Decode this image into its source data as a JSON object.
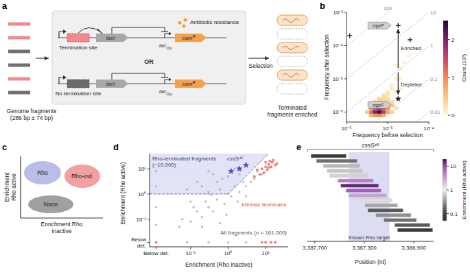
{
  "panel_a": {
    "letter": "a",
    "fragment_colors": [
      "#f08a8f",
      "#f08a8f",
      "#707070",
      "#707070",
      "#f08a8f",
      "#707070"
    ],
    "fragments_label": "Genome fragments (286 bp ± 74 bp)",
    "termination_site": "Termination site",
    "no_termination_site": "No termination site",
    "or": "OR",
    "lacI": "lacI",
    "lac": "lac",
    "op": "Op.",
    "cam": "cam",
    "cam_sup": "R",
    "resistance": "Antibiotic resistance",
    "selection": "Selection",
    "cells_filled": [
      true,
      false,
      true,
      false,
      true,
      false
    ],
    "result": "Terminated fragments enriched"
  },
  "panel_c": {
    "letter": "c",
    "y_label": "Enrichment Rho active",
    "x_label": "Enrichment Rho inactive",
    "groups": [
      {
        "name": "Rho",
        "color": "#b9bde8"
      },
      {
        "name": "Rho-ind.",
        "color": "#f3a0a3"
      },
      {
        "name": "None",
        "color": "#a0a0a0"
      }
    ]
  },
  "chart_data": [
    {
      "panel": "b",
      "type": "scatter",
      "log": true,
      "x_label": "Frequency before selection",
      "y_label": "Frequency after selection",
      "xlim": [
        1e-06,
        0.0001
      ],
      "ylim": [
        5e-07,
        0.001
      ],
      "xticks": [
        {
          "value": 1e-06,
          "label": "10⁻⁶"
        },
        {
          "value": 1e-05,
          "label": "10⁻⁵"
        },
        {
          "value": 0.0001,
          "label": "10⁻⁴"
        }
      ],
      "yticks": [
        {
          "value": 1e-06,
          "label": "10⁻⁶"
        },
        {
          "value": 1e-05,
          "label": "10⁻⁵"
        },
        {
          "value": 0.0001,
          "label": "10⁻⁴"
        },
        {
          "value": 0.001,
          "label": "10⁻³"
        }
      ],
      "cells": {
        "x": [
          4e-06,
          5e-06,
          6.3e-06,
          8e-06,
          1e-05,
          4e-06,
          5e-06,
          6.3e-06,
          8e-06,
          1e-05,
          5e-06,
          6.3e-06,
          8e-06,
          1e-05,
          1.26e-05,
          5e-06,
          6.3e-06,
          8e-06,
          1e-05,
          1.26e-05,
          6.3e-06,
          8e-06,
          1e-05,
          8e-06,
          1e-05,
          1e-05,
          1.26e-05,
          1.26e-05,
          1.6e-05,
          2e-05,
          3.2e-06,
          1.26e-05,
          1.6e-05,
          4e-06,
          5e-06,
          6.3e-06,
          8e-06,
          2.5e-05,
          3.2e-05,
          1.6e-05,
          2e-05,
          1.6e-05,
          2e-05
        ],
        "y": [
          1e-06,
          1e-06,
          1e-06,
          1e-06,
          1e-06,
          1.3e-06,
          1.3e-06,
          1.3e-06,
          1.3e-06,
          1.3e-06,
          1.6e-06,
          1.6e-06,
          1.6e-06,
          1.6e-06,
          1.6e-06,
          2e-06,
          2e-06,
          2e-06,
          2e-06,
          2e-06,
          2.5e-06,
          2.5e-06,
          2.5e-06,
          3.2e-06,
          3.2e-06,
          4e-06,
          5e-06,
          6.3e-06,
          1e-05,
          2e-05,
          1e-06,
          1e-06,
          1.3e-06,
          7.9e-07,
          7.9e-07,
          7.9e-07,
          7.9e-07,
          3.2e-05,
          5e-05,
          2.5e-05,
          1e-05,
          4e-06,
          5e-06
        ],
        "counts": [
          1.2,
          2.0,
          2.3,
          1.6,
          0.8,
          0.9,
          1.5,
          1.8,
          1.4,
          0.9,
          0.9,
          1.0,
          0.9,
          0.6,
          0.5,
          0.4,
          0.6,
          0.6,
          0.4,
          0.3,
          0.35,
          0.35,
          0.3,
          0.25,
          0.2,
          0.15,
          0.1,
          0.08,
          0.05,
          0.03,
          0.5,
          0.4,
          0.2,
          0.6,
          0.9,
          1.0,
          0.7,
          0.02,
          0.01,
          0.02,
          0.04,
          0.1,
          0.05
        ]
      },
      "colorbar": {
        "label": "Count (10³)",
        "range": [
          0,
          2.5
        ],
        "ticks": [
          0,
          1,
          2
        ]
      },
      "ratio_lines": [
        100,
        10,
        1,
        0.1,
        0.01
      ],
      "series": [
        {
          "marker": "cross",
          "color": "#222222",
          "x": [
            1.2e-06,
            1.8e-05,
            3.5e-05
          ],
          "values": [
            0.0002,
            0.0004,
            0.00015
          ]
        },
        {
          "marker": "star",
          "color": "#222222",
          "x": [
            1.8e-05
          ],
          "values": [
            2.5e-06
          ]
        }
      ],
      "annotations": {
        "enriched": "Enriched",
        "depleted": "Depleted",
        "gene_enriched": "mprF",
        "gene_depleted": "mprF"
      }
    },
    {
      "panel": "d",
      "type": "scatter",
      "log": true,
      "x_label": "Enrichment (Rho inactive)",
      "y_label": "Enrichment (Rho active)",
      "xlim": [
        0.008,
        40
      ],
      "ylim": [
        0.008,
        40
      ],
      "xticks": [
        {
          "value": 0.012,
          "label": "Below det."
        },
        {
          "value": 0.1,
          "label": "10⁻¹"
        },
        {
          "value": 1,
          "label": "10⁰"
        },
        {
          "value": 10,
          "label": "10¹"
        }
      ],
      "yticks": [
        {
          "value": 0.012,
          "label": "Below det."
        },
        {
          "value": 0.1,
          "label": "10⁻¹"
        },
        {
          "value": 1,
          "label": "10⁰"
        },
        {
          "value": 10,
          "label": "10¹"
        }
      ],
      "threshold": {
        "x": [
          0.008,
          1,
          12
        ],
        "y": [
          1,
          1,
          40
        ]
      },
      "region_label": "Rho-terminated fragments (~10,000)",
      "series": [
        {
          "name": "All fragments (n = 161,000)",
          "color": "#a8a8a8",
          "marker": "circle",
          "x": [
            0.06,
            0.1,
            0.15,
            0.2,
            0.3,
            0.25,
            0.4,
            0.5,
            0.6,
            0.8,
            1,
            1.2,
            1.5,
            2,
            2.5,
            3,
            0.3,
            0.2,
            0.15,
            0.1,
            0.5,
            0.7,
            0.4,
            1,
            2,
            0.08,
            0.12,
            0.35,
            0.9,
            1.8,
            4,
            5,
            3,
            0.6,
            0.05,
            0.2,
            1.5,
            0.3,
            0.012,
            0.012,
            0.012,
            0.012,
            0.3,
            1,
            3,
            0.08,
            6,
            8
          ],
          "values": [
            0.1,
            0.08,
            0.2,
            0.12,
            0.3,
            0.5,
            0.2,
            0.6,
            1.5,
            0.4,
            1,
            0.8,
            2,
            1.2,
            3,
            2,
            1.2,
            2,
            3,
            0.5,
            3,
            4,
            6,
            5,
            6,
            1.5,
            0.3,
            0.9,
            0.15,
            0.5,
            3,
            4,
            0.8,
            0.07,
            0.05,
            0.05,
            10,
            8,
            0.3,
            2,
            8,
            0.06,
            0.012,
            0.012,
            0.012,
            0.012,
            8,
            6
          ]
        },
        {
          "name": "Intrinsic terminator",
          "color": "#f07070",
          "marker": "circle",
          "x": [
            8,
            10,
            12,
            15,
            9,
            11,
            14,
            13,
            18,
            7,
            16,
            20,
            10,
            6,
            5,
            12,
            10,
            14,
            18,
            8,
            0.012,
            0.012
          ],
          "values": [
            10,
            12,
            15,
            18,
            7,
            9,
            12,
            20,
            14,
            6,
            22,
            16,
            18,
            9,
            5,
            11,
            0.012,
            0.012,
            0.012,
            0.012,
            12,
            0.012
          ]
        },
        {
          "name": "cssS⁴⁵",
          "color": "#5b4fc4",
          "marker": "star",
          "x": [
            1.2,
            2,
            3
          ],
          "values": [
            8,
            10,
            14
          ]
        }
      ]
    },
    {
      "panel": "e",
      "type": "range",
      "title": "cssS⁴⁵",
      "x_label": "Position (nt)",
      "xlim": [
        3387760,
        3386740
      ],
      "xticks": [
        {
          "value": 3387700,
          "label": "3,387,700"
        },
        {
          "value": 3387300,
          "label": "3,387,300"
        },
        {
          "value": 3386900,
          "label": "3,386,900"
        }
      ],
      "start": [
        3387731,
        3387687,
        3387630,
        3387600,
        3387578,
        3387512,
        3387490,
        3387447,
        3387425,
        3387338,
        3387294,
        3387272,
        3387207,
        3387141,
        3387054,
        3387032
      ],
      "end": [
        3387447,
        3387359,
        3387338,
        3387316,
        3387272,
        3387228,
        3387185,
        3387163,
        3387119,
        3387076,
        3387032,
        3386988,
        3386923,
        3386879,
        3386770,
        3386748
      ],
      "values": [
        0.1,
        0.2,
        0.5,
        0.6,
        0.7,
        5,
        15,
        8,
        3,
        0.8,
        0.4,
        0.15,
        0.3,
        0.2,
        0.15,
        0.1
      ],
      "highlight": {
        "label": "Known Rho target",
        "range": [
          3387425,
          3387097
        ]
      },
      "colorbar": {
        "label": "Enrichment (Rho active)",
        "range": [
          0.05,
          20
        ],
        "ticks": [
          0.1,
          1,
          10
        ]
      }
    }
  ]
}
